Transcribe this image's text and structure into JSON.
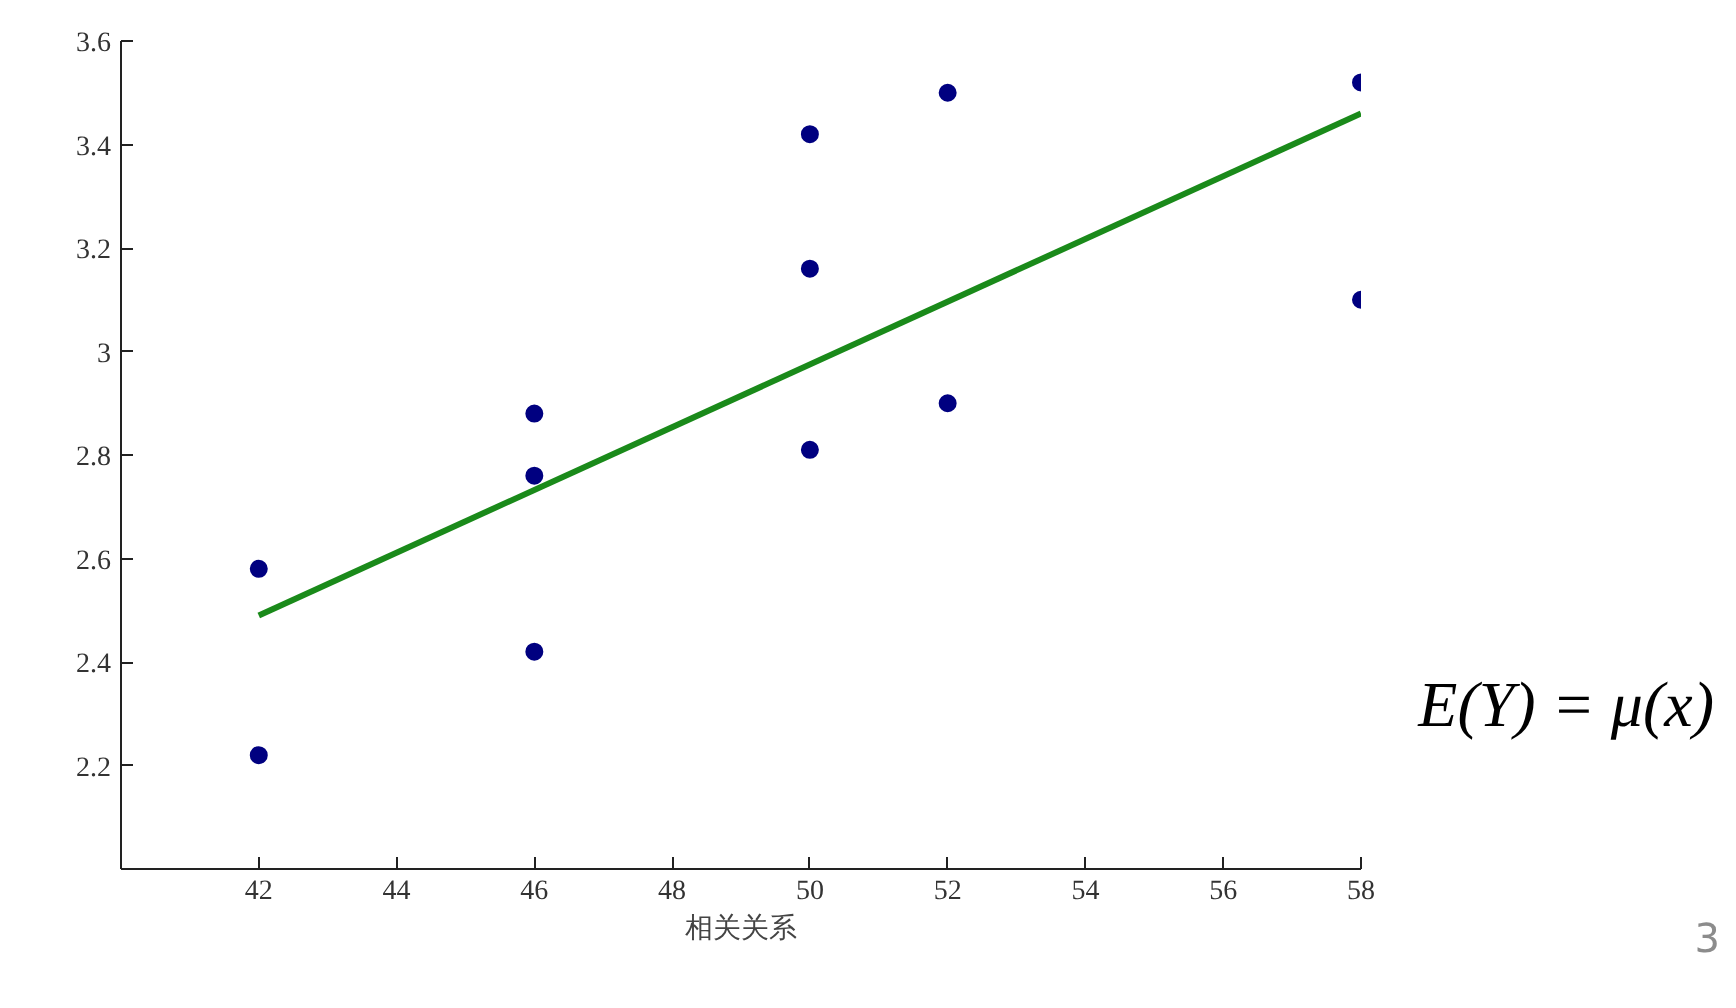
{
  "chart_data": {
    "type": "scatter",
    "xlabel": "相关关系",
    "annotations": [
      "E(Y) = μ(x)",
      "3"
    ],
    "xlim": [
      40,
      58
    ],
    "ylim": [
      2.0,
      3.6
    ],
    "xticks": [
      42,
      44,
      46,
      48,
      50,
      52,
      54,
      56,
      58
    ],
    "yticks": [
      2.2,
      2.4,
      2.6,
      2.8,
      3,
      3.2,
      3.4,
      3.6
    ],
    "grid": false,
    "series": [
      {
        "marker": "circle",
        "color": "#000080",
        "x": [
          42,
          42,
          46,
          46,
          46,
          50,
          50,
          50,
          52,
          52,
          58,
          58
        ],
        "values": [
          2.58,
          2.22,
          2.88,
          2.76,
          2.42,
          3.42,
          3.16,
          2.81,
          3.5,
          2.9,
          3.52,
          3.1
        ]
      },
      {
        "type": "line",
        "color": "#1a8a1a",
        "line_style": "solid",
        "x": [
          42,
          58
        ],
        "values": [
          2.49,
          3.46
        ]
      }
    ]
  }
}
